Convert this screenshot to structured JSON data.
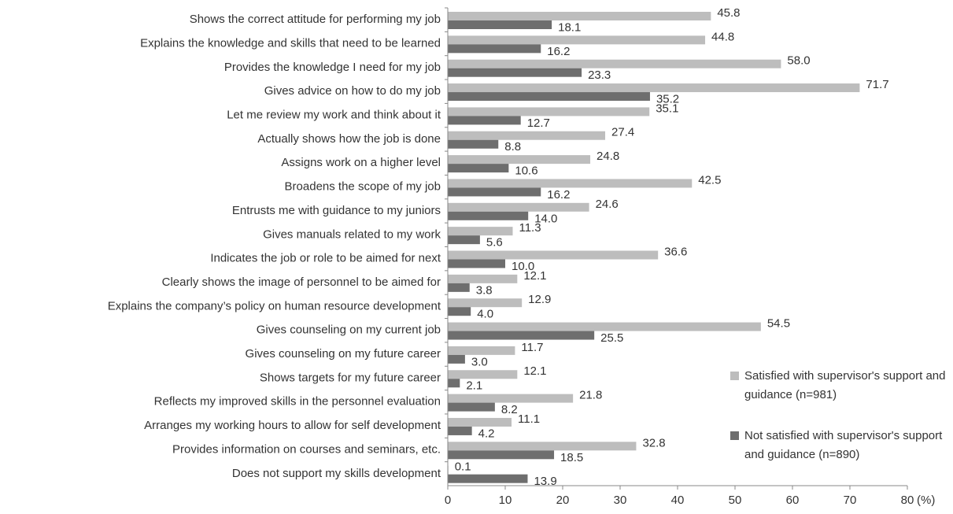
{
  "chart_data": {
    "type": "hbar",
    "categories": [
      "Shows the correct attitude for performing my job",
      "Explains the knowledge and skills that need to be learned",
      "Provides the knowledge I need for my job",
      "Gives advice on how to do my job",
      "Let me review my work and think about it",
      "Actually shows how the job is done",
      "Assigns work on a higher level",
      "Broadens the scope of my job",
      "Entrusts me with guidance to my juniors",
      "Gives manuals related to my work",
      "Indicates the job or role to be aimed for next",
      "Clearly shows the image of personnel to be aimed for",
      "Explains the company’s policy on human resource development",
      "Gives counseling on my current job",
      "Gives counseling on my future career",
      "Shows targets for my future career",
      "Reflects my improved skills in the personnel evaluation",
      "Arranges my working hours to allow for self development",
      "Provides information on courses and seminars, etc.",
      "Does not support my skills development"
    ],
    "series": [
      {
        "name": "Satisfied with supervisor's support and guidance (n=981)",
        "color": "#bdbdbd",
        "values": [
          45.8,
          44.8,
          58.0,
          71.7,
          35.1,
          27.4,
          24.8,
          42.5,
          24.6,
          11.3,
          36.6,
          12.1,
          12.9,
          54.5,
          11.7,
          12.1,
          21.8,
          11.1,
          32.8,
          0.1
        ],
        "value_labels": [
          "45.8",
          "44.8",
          "58.0",
          "71.7",
          "35.1",
          "27.4",
          "24.8",
          "42.5",
          "24.6",
          "11.3",
          "36.6",
          "12.1",
          "12.9",
          "54.5",
          "11.7",
          "12.1",
          "21.8",
          "11.1",
          "32.8",
          "0.1"
        ]
      },
      {
        "name": "Not satisfied with supervisor's support and guidance (n=890)",
        "color": "#6e6e6e",
        "values": [
          18.1,
          16.2,
          23.3,
          35.2,
          12.7,
          8.8,
          10.6,
          16.2,
          14.0,
          5.6,
          10.0,
          3.8,
          4.0,
          25.5,
          3.0,
          2.1,
          8.2,
          4.2,
          18.5,
          13.9
        ],
        "value_labels": [
          "18.1",
          "16.2",
          "23.3",
          "35.2",
          "12.7",
          "8.8",
          "10.6",
          "16.2",
          "14.0",
          "5.6",
          "10.0",
          "3.8",
          "4.0",
          "25.5",
          "3.0",
          "2.1",
          "8.2",
          "4.2",
          "18.5",
          "13.9"
        ]
      }
    ],
    "xlabel": "(%)",
    "xlim": [
      0,
      80
    ],
    "xticks": [
      0,
      10,
      20,
      30,
      40,
      50,
      60,
      70,
      80
    ],
    "legend": "lower right"
  }
}
